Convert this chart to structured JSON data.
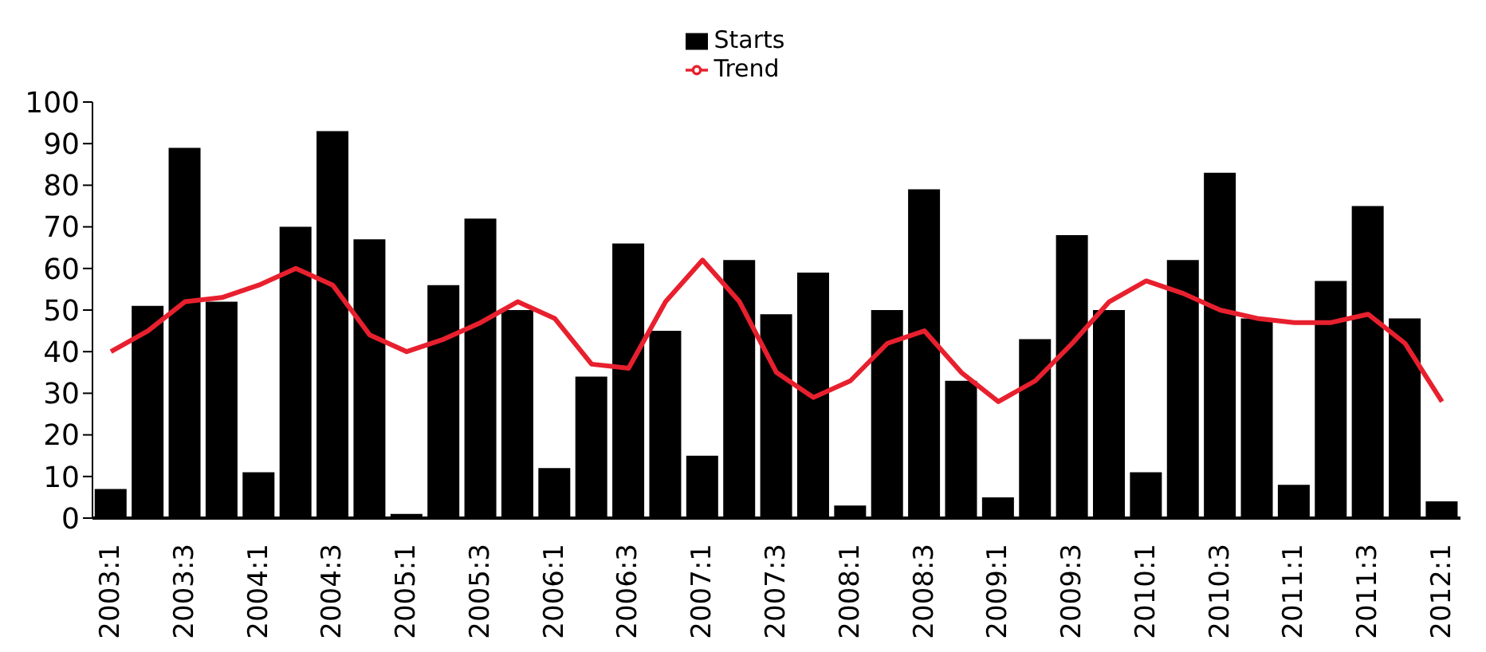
{
  "chart_data": {
    "type": "bar",
    "categories": [
      "2003:1",
      null,
      "2003:3",
      null,
      "2004:1",
      null,
      "2004:3",
      null,
      "2005:1",
      null,
      "2005:3",
      null,
      "2006:1",
      null,
      "2006:3",
      null,
      "2007:1",
      null,
      "2007:3",
      null,
      "2008:1",
      null,
      "2008:3",
      null,
      "2009:1",
      null,
      "2009:3",
      null,
      "2010:1",
      null,
      "2010:3",
      null,
      "2011:1",
      null,
      "2011:3",
      null,
      "2012:1"
    ],
    "series": [
      {
        "name": "Starts",
        "color": "#000000",
        "values": [
          7,
          51,
          89,
          52,
          11,
          70,
          93,
          67,
          1,
          56,
          72,
          50,
          12,
          34,
          66,
          45,
          15,
          62,
          49,
          59,
          3,
          50,
          79,
          33,
          5,
          43,
          68,
          50,
          11,
          62,
          83,
          48,
          8,
          57,
          75,
          48,
          4
        ]
      },
      {
        "name": "Trend",
        "type": "line",
        "color": "#e8202e",
        "values": [
          40,
          45,
          52,
          53,
          56,
          60,
          56,
          44,
          40,
          43,
          47,
          52,
          48,
          37,
          36,
          52,
          62,
          52,
          35,
          29,
          33,
          42,
          45,
          35,
          28,
          33,
          42,
          52,
          57,
          54,
          50,
          48,
          47,
          47,
          49,
          42,
          28
        ]
      }
    ],
    "ylim": [
      0,
      100
    ],
    "yticks": [
      0,
      10,
      20,
      30,
      40,
      50,
      60,
      70,
      80,
      90,
      100
    ],
    "legend": "top",
    "marker": "none",
    "grid": false
  }
}
